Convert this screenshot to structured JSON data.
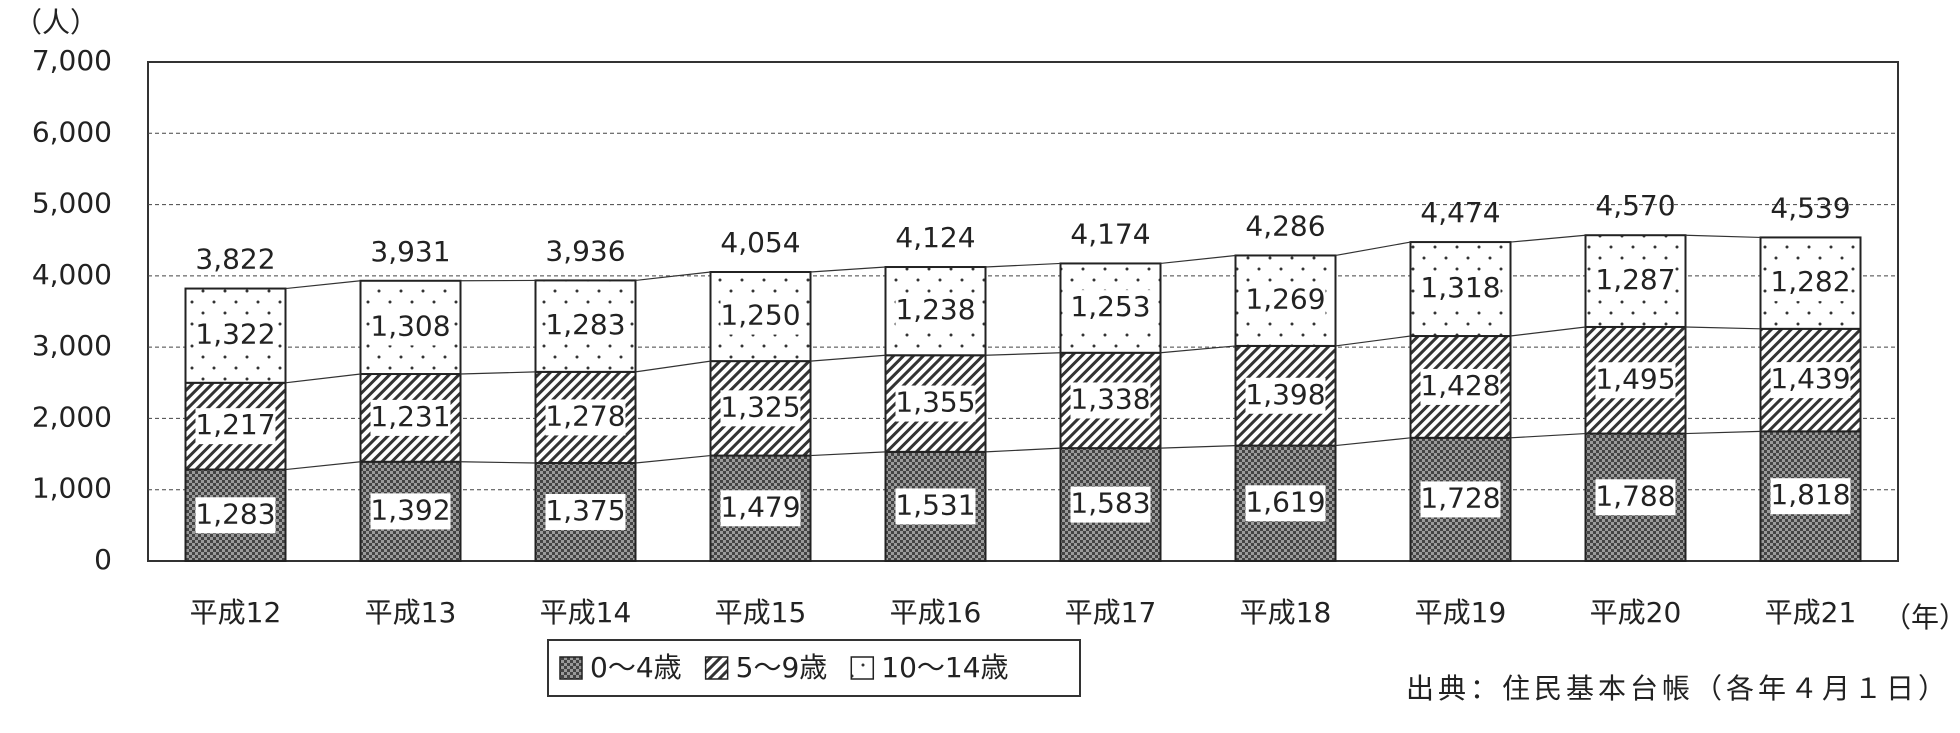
{
  "chart_data": {
    "type": "stacked_bar",
    "y_unit": "（人）",
    "x_unit": "（年）",
    "source": "出典：住民基本台帳（各年４月１日）",
    "categories": [
      "平成12",
      "平成13",
      "平成14",
      "平成15",
      "平成16",
      "平成17",
      "平成18",
      "平成19",
      "平成20",
      "平成21"
    ],
    "series": [
      {
        "name": "0～4歳",
        "color": "#555555",
        "pattern": "checker",
        "values": [
          1283,
          1392,
          1375,
          1479,
          1531,
          1583,
          1619,
          1728,
          1788,
          1818
        ],
        "value_labels": [
          "1,283",
          "1,392",
          "1,375",
          "1,479",
          "1,531",
          "1,583",
          "1,619",
          "1,728",
          "1,788",
          "1,818"
        ]
      },
      {
        "name": "5～9歳",
        "color": "#333333",
        "pattern": "hatch",
        "values": [
          1217,
          1231,
          1278,
          1325,
          1355,
          1338,
          1398,
          1428,
          1495,
          1439
        ],
        "value_labels": [
          "1,217",
          "1,231",
          "1,278",
          "1,325",
          "1,355",
          "1,338",
          "1,398",
          "1,428",
          "1,495",
          "1,439"
        ]
      },
      {
        "name": "10～14歳",
        "color": "#333333",
        "pattern": "dots",
        "values": [
          1322,
          1308,
          1283,
          1250,
          1238,
          1253,
          1269,
          1318,
          1287,
          1282
        ],
        "value_labels": [
          "1,322",
          "1,308",
          "1,283",
          "1,250",
          "1,238",
          "1,253",
          "1,269",
          "1,318",
          "1,287",
          "1,282"
        ]
      }
    ],
    "totals": [
      3822,
      3931,
      3936,
      4054,
      4124,
      4174,
      4286,
      4474,
      4570,
      4539
    ],
    "total_labels": [
      "3,822",
      "3,931",
      "3,936",
      "4,054",
      "4,124",
      "4,174",
      "4,286",
      "4,474",
      "4,570",
      "4,539"
    ],
    "ylim": [
      0,
      7000
    ],
    "yticks": [
      0,
      {
        "value": 1000,
        "label": "1,000"
      },
      {
        "value": 2000,
        "label": "2,000"
      },
      {
        "value": 3000,
        "label": "3,000"
      },
      {
        "value": 4000,
        "label": "4,000"
      },
      {
        "value": 5000,
        "label": "5,000"
      },
      {
        "value": 6000,
        "label": "6,000"
      },
      {
        "value": 7000,
        "label": "7,000"
      }
    ],
    "grid": true
  }
}
